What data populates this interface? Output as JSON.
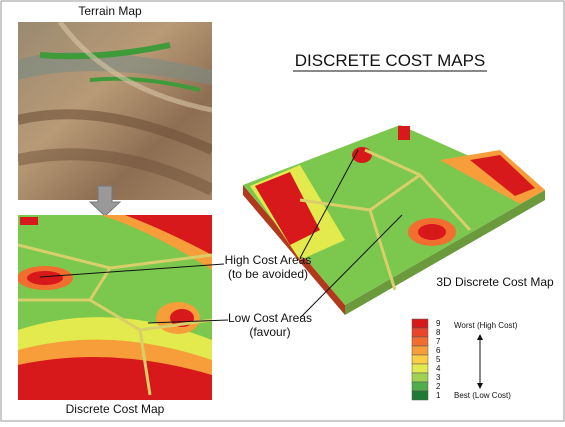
{
  "title": "DISCRETE COST MAPS",
  "terrain_map": {
    "label": "Terrain Map"
  },
  "cost_map_2d": {
    "label": "Discrete Cost Map"
  },
  "cost_map_3d": {
    "label": "3D Discrete Cost Map"
  },
  "annotations": {
    "high_cost": {
      "line1": "High Cost Areas",
      "line2": "(to be avoided)"
    },
    "low_cost": {
      "line1": "Low Cost Areas",
      "line2": "(favour)"
    }
  },
  "legend": {
    "top_label": "Worst (High Cost)",
    "bottom_label": "Best (Low Cost)",
    "levels": [
      {
        "label": 9,
        "color": "#d7191c"
      },
      {
        "label": 8,
        "color": "#e8452b"
      },
      {
        "label": 7,
        "color": "#f26d30"
      },
      {
        "label": 6,
        "color": "#f79d3a"
      },
      {
        "label": 5,
        "color": "#fbcf45"
      },
      {
        "label": 4,
        "color": "#e3ea4d"
      },
      {
        "label": 3,
        "color": "#9fd250"
      },
      {
        "label": 2,
        "color": "#4fae49"
      },
      {
        "label": 1,
        "color": "#1f7a35"
      }
    ]
  }
}
